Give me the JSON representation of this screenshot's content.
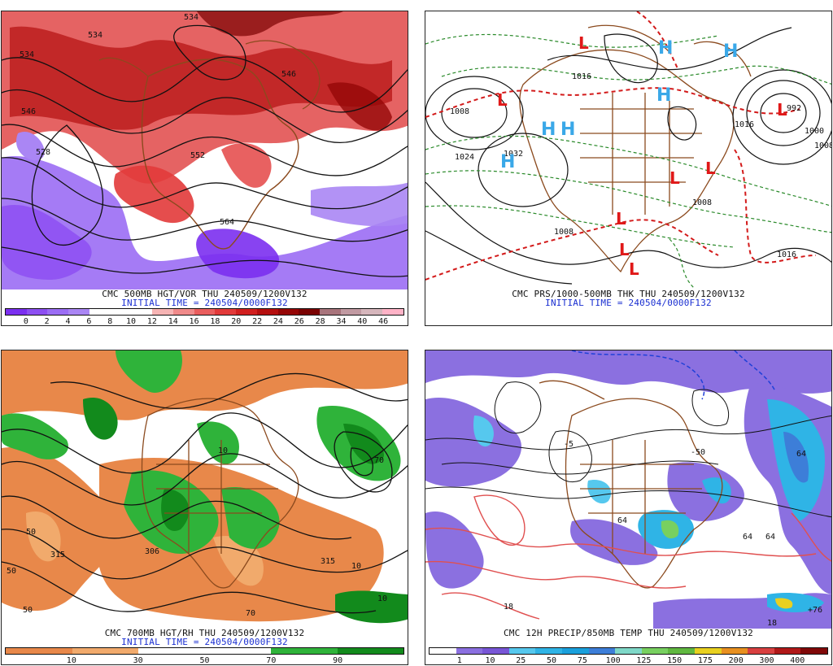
{
  "panels": {
    "tl": {
      "caption": "CMC 500MB HGT/VOR THU 240509/1200V132",
      "init": "INITIAL TIME = 240504/0000F132",
      "legend_colors": [
        "#7b2ff0",
        "#8d4ff2",
        "#9b6df4",
        "#aa86f4",
        "#ffffff",
        "#ffffff",
        "#ffffff",
        "#f6b4b4",
        "#f08a8a",
        "#ea5e5e",
        "#e23a3a",
        "#d11f1f",
        "#b50f0f",
        "#950606",
        "#7a0202",
        "#a8747c",
        "#c19aa2",
        "#d6b6bc",
        "#ffb3c7"
      ],
      "legend_ticks": [
        "0",
        "2",
        "4",
        "6",
        "8",
        "10",
        "12",
        "14",
        "16",
        "18",
        "20",
        "22",
        "24",
        "26",
        "28",
        "34",
        "40",
        "46"
      ],
      "contour_labels": [
        "534",
        "534",
        "546",
        "534",
        "546",
        "528",
        "552",
        "564"
      ]
    },
    "tr": {
      "caption": "CMC PRS/1000-500MB THK THU 240509/1200V132",
      "init": "INITIAL TIME = 240504/0000F132",
      "isobar_labels": [
        "1008",
        "1024",
        "1032",
        "1016",
        "992",
        "1000",
        "1008",
        "1016",
        "1008",
        "1016",
        "1008"
      ],
      "highs": [
        "H",
        "H",
        "H",
        "H",
        "H",
        "H"
      ],
      "lows": [
        "L",
        "L",
        "L",
        "L",
        "L",
        "L",
        "L",
        "L"
      ]
    },
    "bl": {
      "caption": "CMC 700MB HGT/RH THU 240509/1200V132",
      "init": "INITIAL TIME = 240504/0000F132",
      "legend_colors": [
        "#e8884a",
        "#e8884a",
        "#f1aa6c",
        "#f1aa6c",
        "#ffffff",
        "#ffffff",
        "#ffffff",
        "#ffffff",
        "#2fb33a",
        "#2fb33a",
        "#128a1c",
        "#128a1c"
      ],
      "legend_ticks": [
        "10",
        "30",
        "50",
        "70",
        "90"
      ],
      "contour_labels": [
        "315",
        "306",
        "50",
        "50",
        "10",
        "10",
        "70",
        "315",
        "10",
        "50",
        "70"
      ]
    },
    "br": {
      "caption": "CMC 12H PRECIP/850MB TEMP THU 240509/1200V132",
      "legend_colors": [
        "#ffffff",
        "#8b70e0",
        "#7856d6",
        "#56c8ee",
        "#2fb4e6",
        "#1aa0dc",
        "#3d7ed8",
        "#7fd8c8",
        "#78d060",
        "#60b840",
        "#e8d020",
        "#e89020",
        "#d84040",
        "#b01818",
        "#800808"
      ],
      "legend_ticks": [
        "1",
        "10",
        "25",
        "50",
        "75",
        "100",
        "125",
        "150",
        "175",
        "200",
        "300",
        "400"
      ],
      "contour_labels": [
        "-5",
        "-50",
        "64",
        "64",
        "64",
        "18",
        "64",
        "+76",
        "18"
      ]
    }
  }
}
